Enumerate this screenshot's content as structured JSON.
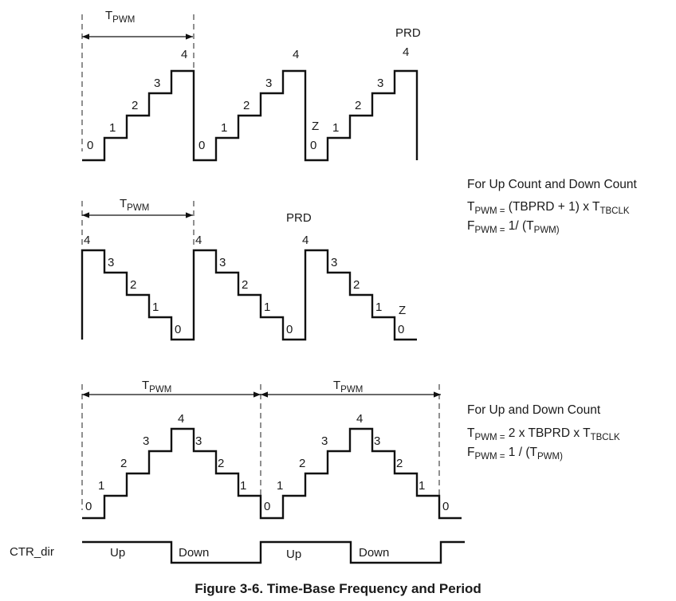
{
  "caption": "Figure 3-6. Time-Base Frequency and Period",
  "period_label": {
    "main": "T",
    "sub": "PWM"
  },
  "prd_label": "PRD",
  "zero_label": "Z",
  "ctr_dir": {
    "label": "CTR_dir",
    "up": "Up",
    "down": "Down"
  },
  "step_values": [
    "0",
    "1",
    "2",
    "3",
    "4"
  ],
  "up_count": {
    "tbprd": 4,
    "sequence": [
      0,
      1,
      2,
      3,
      4
    ],
    "periods": 3
  },
  "down_count": {
    "tbprd": 4,
    "sequence": [
      4,
      3,
      2,
      1,
      0
    ],
    "periods": 3
  },
  "up_down_count": {
    "tbprd": 4,
    "sequence": [
      0,
      1,
      2,
      3,
      4,
      3,
      2,
      1
    ],
    "periods": 2
  },
  "equations_up_or_down": {
    "heading": "For Up Count and Down Count",
    "line1": {
      "t": "T",
      "t_sub": "PWM =",
      "body": " (TBPRD + 1) x T",
      "body_sub": "TBCLK"
    },
    "line2": {
      "t": "F",
      "t_sub": "PWM =",
      "body": " 1/ (T",
      "body_sub": "PWM)"
    }
  },
  "equations_up_down": {
    "heading": "For Up and Down Count",
    "line1": {
      "t": "T",
      "t_sub": "PWM =",
      "body": " 2 x TBPRD x T",
      "body_sub": "TBCLK"
    },
    "line2": {
      "t": "F",
      "t_sub": "PWM =",
      "body": " 1 / (T",
      "body_sub": "PWM)"
    }
  },
  "colors": {
    "ink": "#111111",
    "background": "#ffffff"
  }
}
